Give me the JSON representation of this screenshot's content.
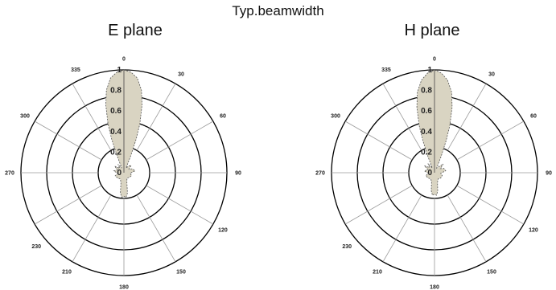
{
  "page": {
    "title": "Typ.beamwidth"
  },
  "chart_data": [
    {
      "type": "polar",
      "title": "E plane",
      "angle_labels": [
        "0",
        "30",
        "60",
        "90",
        "120",
        "150",
        "180",
        "210",
        "230",
        "270",
        "300",
        "335"
      ],
      "angle_values_deg": [
        0,
        30,
        60,
        90,
        120,
        150,
        180,
        210,
        230,
        270,
        300,
        335
      ],
      "radial_ticks": [
        0,
        0.2,
        0.4,
        0.6,
        0.8,
        1
      ],
      "rlim": [
        0,
        1
      ],
      "fill_color": "#d9d4c2",
      "series": [
        {
          "theta": [
            0,
            4,
            8,
            12,
            15,
            18,
            20,
            22,
            25,
            35,
            45,
            55,
            65,
            80,
            95,
            110,
            130,
            150,
            163,
            170,
            175,
            180,
            185,
            190,
            197,
            210,
            230,
            250,
            265,
            280,
            295,
            305,
            315,
            325,
            335,
            338,
            340,
            342,
            345,
            348,
            352,
            356,
            360
          ],
          "r": [
            1.0,
            0.98,
            0.93,
            0.82,
            0.68,
            0.5,
            0.35,
            0.18,
            0.05,
            0.08,
            0.1,
            0.06,
            0.09,
            0.11,
            0.06,
            0.08,
            0.07,
            0.06,
            0.1,
            0.2,
            0.24,
            0.23,
            0.24,
            0.2,
            0.1,
            0.07,
            0.08,
            0.09,
            0.06,
            0.1,
            0.07,
            0.11,
            0.06,
            0.1,
            0.05,
            0.18,
            0.35,
            0.5,
            0.68,
            0.82,
            0.93,
            0.98,
            1.0
          ]
        }
      ]
    },
    {
      "type": "polar",
      "title": "H plane",
      "angle_labels": [
        "0",
        "30",
        "60",
        "90",
        "120",
        "150",
        "180",
        "210",
        "230",
        "270",
        "300",
        "335"
      ],
      "angle_values_deg": [
        0,
        30,
        60,
        90,
        120,
        150,
        180,
        210,
        230,
        270,
        300,
        335
      ],
      "radial_ticks": [
        0,
        0.2,
        0.4,
        0.6,
        0.8,
        1
      ],
      "rlim": [
        0,
        1
      ],
      "fill_color": "#d9d4c2",
      "series": [
        {
          "theta": [
            0,
            4,
            8,
            12,
            15,
            18,
            20,
            22,
            25,
            35,
            45,
            55,
            65,
            80,
            95,
            110,
            130,
            150,
            163,
            170,
            175,
            180,
            185,
            190,
            197,
            210,
            230,
            250,
            265,
            280,
            295,
            305,
            315,
            325,
            335,
            338,
            340,
            342,
            345,
            348,
            352,
            356,
            360
          ],
          "r": [
            1.0,
            0.97,
            0.91,
            0.8,
            0.66,
            0.48,
            0.33,
            0.17,
            0.05,
            0.07,
            0.12,
            0.07,
            0.1,
            0.11,
            0.06,
            0.08,
            0.08,
            0.07,
            0.1,
            0.18,
            0.22,
            0.21,
            0.22,
            0.18,
            0.1,
            0.07,
            0.08,
            0.09,
            0.06,
            0.1,
            0.07,
            0.12,
            0.07,
            0.11,
            0.05,
            0.17,
            0.33,
            0.48,
            0.66,
            0.8,
            0.91,
            0.97,
            1.0
          ]
        }
      ]
    }
  ]
}
